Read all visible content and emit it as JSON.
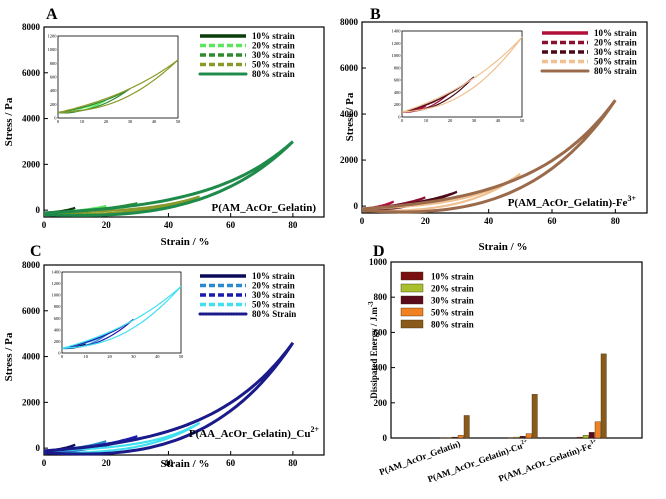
{
  "chart_data": [
    {
      "panel": "A",
      "type": "line",
      "xlabel": "Strain / %",
      "ylabel": "Stress / Pa",
      "xlim": [
        0,
        90
      ],
      "ylim": [
        -300,
        8000
      ],
      "xticks": [
        "0",
        "20",
        "40",
        "60",
        "80"
      ],
      "yticks": [
        "0",
        "2000",
        "4000",
        "6000",
        "8000"
      ],
      "annotation": "P(AM_AcOr_Gelatin)",
      "series": [
        {
          "name": "10% strain",
          "color": "#0a3d0a",
          "dash": "solid",
          "max_strain": 10,
          "peak_stress": 100
        },
        {
          "name": "20% strain",
          "color": "#5ce65c",
          "dash": "dash",
          "max_strain": 20,
          "peak_stress": 180
        },
        {
          "name": "30% strain",
          "color": "#2e8b2e",
          "dash": "dash",
          "max_strain": 30,
          "peak_stress": 300
        },
        {
          "name": "50% strain",
          "color": "#8a9a2a",
          "dash": "dash",
          "max_strain": 50,
          "peak_stress": 600
        },
        {
          "name": "80% strain",
          "color": "#1e8b4a",
          "dash": "dot",
          "max_strain": 80,
          "peak_stress": 3000
        }
      ],
      "inset": {
        "xticks": [
          "0",
          "10",
          "20",
          "30",
          "40",
          "50"
        ],
        "yticks": [
          "0",
          "200",
          "400",
          "600",
          "800",
          "1000",
          "1200"
        ],
        "xlim": [
          0,
          50
        ],
        "ylim": [
          0,
          1200
        ],
        "peak_stress": 850
      }
    },
    {
      "panel": "B",
      "type": "line",
      "xlabel": "Strain / %",
      "ylabel": "Stress / Pa",
      "xlim": [
        0,
        90
      ],
      "ylim": [
        -300,
        8000
      ],
      "xticks": [
        "0",
        "20",
        "40",
        "60",
        "80"
      ],
      "yticks": [
        "0",
        "2000",
        "4000",
        "6000",
        "8000"
      ],
      "annotation": "P(AM_AcOr_Gelatin)-Fe",
      "annotation_sup": "3+",
      "series": [
        {
          "name": "10% strain",
          "color": "#b0103a",
          "dash": "solid",
          "max_strain": 10,
          "peak_stress": 200
        },
        {
          "name": "20% strain",
          "color": "#8b1030",
          "dash": "dash",
          "max_strain": 20,
          "peak_stress": 380
        },
        {
          "name": "30% strain",
          "color": "#4a0a1a",
          "dash": "dash",
          "max_strain": 30,
          "peak_stress": 620
        },
        {
          "name": "50% strain",
          "color": "#f0c090",
          "dash": "dash",
          "max_strain": 50,
          "peak_stress": 1400
        },
        {
          "name": "80% strain",
          "color": "#9a6a4a",
          "dash": "dot",
          "max_strain": 80,
          "peak_stress": 4600
        }
      ],
      "inset": {
        "xticks": [
          "0",
          "10",
          "20",
          "30",
          "40",
          "50"
        ],
        "yticks": [
          "0",
          "200",
          "400",
          "600",
          "800",
          "1000",
          "1200",
          "1400"
        ],
        "xlim": [
          0,
          50
        ],
        "ylim": [
          0,
          1400
        ],
        "peak_stress": 1300
      }
    },
    {
      "panel": "C",
      "type": "line",
      "xlabel": "Strain / %",
      "ylabel": "Stress / Pa",
      "xlim": [
        0,
        90
      ],
      "ylim": [
        -300,
        8000
      ],
      "xticks": [
        "0",
        "20",
        "40",
        "60",
        "80"
      ],
      "yticks": [
        "0",
        "2000",
        "4000",
        "6000",
        "8000"
      ],
      "annotation": "P(AA_AcOr_Gelatin)_Cu",
      "annotation_sup": "2+",
      "series": [
        {
          "name": "10% strain",
          "color": "#0a0a5a",
          "dash": "solid",
          "max_strain": 10,
          "peak_stress": 150
        },
        {
          "name": "20% strain",
          "color": "#2a8ad0",
          "dash": "dash",
          "max_strain": 20,
          "peak_stress": 300
        },
        {
          "name": "30% strain",
          "color": "#1a1ab0",
          "dash": "dash",
          "max_strain": 30,
          "peak_stress": 520
        },
        {
          "name": "50% strain",
          "color": "#40e0f0",
          "dash": "dash",
          "max_strain": 50,
          "peak_stress": 1100
        },
        {
          "name": "80% Strain",
          "color": "#1a1a8a",
          "dash": "dot",
          "max_strain": 80,
          "peak_stress": 4600
        }
      ],
      "inset": {
        "xticks": [
          "0",
          "10",
          "20",
          "30",
          "40",
          "50"
        ],
        "yticks": [
          "0",
          "200",
          "400",
          "600",
          "800",
          "1000",
          "1200",
          "1400"
        ],
        "xlim": [
          0,
          50
        ],
        "ylim": [
          0,
          1400
        ],
        "peak_stress": 1150
      }
    },
    {
      "panel": "D",
      "type": "bar",
      "ylabel": "Dissipated Energy / J.m",
      "ylabel_sup": "-3",
      "ylim": [
        0,
        1000
      ],
      "yticks": [
        "0",
        "200",
        "400",
        "600",
        "800",
        "1000"
      ],
      "categories": [
        {
          "label": "P(AM_AcOr_Gelatin)",
          "sup": ""
        },
        {
          "label": "P(AM_AcOr_Gelatin)-Cu",
          "sup": "2+"
        },
        {
          "label": "P(AM_AcOr_Gelatin)-Fe",
          "sup": "3+"
        }
      ],
      "series": [
        {
          "name": "10% strain",
          "color": "#7a1010",
          "values": [
            1,
            2,
            5
          ]
        },
        {
          "name": "20% strain",
          "color": "#a8c030",
          "values": [
            2,
            5,
            15
          ]
        },
        {
          "name": "30% strain",
          "color": "#5a0a1a",
          "values": [
            5,
            10,
            32
          ]
        },
        {
          "name": "50% strain",
          "color": "#f08020",
          "values": [
            15,
            25,
            92
          ]
        },
        {
          "name": "80% strain",
          "color": "#8a5a1a",
          "values": [
            128,
            248,
            478
          ]
        }
      ]
    }
  ]
}
